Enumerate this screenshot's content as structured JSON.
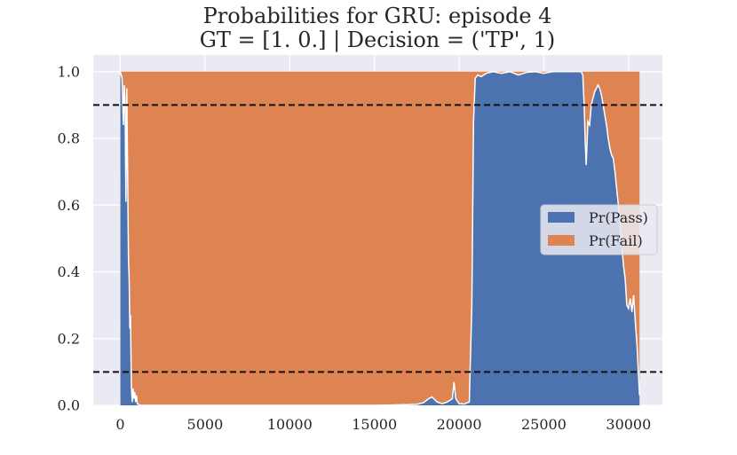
{
  "chart_data": {
    "type": "area",
    "title": "Probabilities for GRU: episode 4",
    "subtitle": "GT = [1. 0.] | Decision = ('TP', 1)",
    "xlabel": "",
    "ylabel": "",
    "xlim": [
      -1600,
      32000
    ],
    "ylim": [
      0,
      1.05
    ],
    "xticks": [
      0,
      5000,
      10000,
      15000,
      20000,
      25000,
      30000
    ],
    "xtick_labels": [
      "0",
      "5000",
      "10000",
      "15000",
      "20000",
      "25000",
      "30000"
    ],
    "yticks": [
      0.0,
      0.2,
      0.4,
      0.6,
      0.8,
      1.0
    ],
    "ytick_labels": [
      "0.0",
      "0.2",
      "0.4",
      "0.6",
      "0.8",
      "1.0"
    ],
    "grid": true,
    "legend_position": "center-right",
    "stacked": true,
    "thresholds": [
      0.9,
      0.1
    ],
    "series": [
      {
        "name": "Pr(Pass)",
        "color": "#4c72b0",
        "x": [
          0,
          100,
          180,
          230,
          280,
          330,
          380,
          430,
          480,
          520,
          560,
          600,
          650,
          700,
          750,
          800,
          850,
          900,
          950,
          1000,
          1100,
          1200,
          1400,
          2000,
          5000,
          10000,
          15000,
          16000,
          16800,
          17500,
          17900,
          18200,
          18400,
          18700,
          19000,
          19300,
          19450,
          19600,
          19700,
          19800,
          20000,
          20300,
          20600,
          20750,
          20850,
          20950,
          21100,
          21300,
          21600,
          22000,
          22500,
          23000,
          23500,
          24000,
          24500,
          25000,
          25500,
          26000,
          26500,
          27000,
          27200,
          27300,
          27380,
          27450,
          27500,
          27600,
          27700,
          27800,
          27900,
          28000,
          28100,
          28200,
          28300,
          28400,
          28500,
          28600,
          28700,
          28800,
          28900,
          29000,
          29100,
          29200,
          29300,
          29400,
          29500,
          29600,
          29700,
          29800,
          29900,
          30000,
          30100,
          30200,
          30300,
          30400,
          30500,
          30600,
          30650
        ],
        "values": [
          1.0,
          0.98,
          0.84,
          0.96,
          0.9,
          0.61,
          0.95,
          0.7,
          0.44,
          0.38,
          0.23,
          0.27,
          0.06,
          0.01,
          0.05,
          0.02,
          0.04,
          0.01,
          0.03,
          0.005,
          0.002,
          0.0,
          0.0,
          0.0,
          0.0,
          0.0,
          0.0,
          0.001,
          0.002,
          0.003,
          0.008,
          0.02,
          0.025,
          0.01,
          0.005,
          0.01,
          0.015,
          0.02,
          0.07,
          0.02,
          0.005,
          0.004,
          0.01,
          0.3,
          0.85,
          0.98,
          0.99,
          0.985,
          0.995,
          1.0,
          0.995,
          1.0,
          0.99,
          0.998,
          1.0,
          0.995,
          1.0,
          1.0,
          1.0,
          1.0,
          1.0,
          0.99,
          0.9,
          0.78,
          0.72,
          0.85,
          0.84,
          0.9,
          0.92,
          0.94,
          0.95,
          0.96,
          0.95,
          0.93,
          0.9,
          0.87,
          0.84,
          0.8,
          0.77,
          0.75,
          0.74,
          0.7,
          0.65,
          0.6,
          0.55,
          0.48,
          0.42,
          0.38,
          0.3,
          0.29,
          0.32,
          0.28,
          0.33,
          0.25,
          0.18,
          0.08,
          0.03
        ]
      },
      {
        "name": "Pr(Fail)",
        "color": "#dd8452"
      }
    ]
  }
}
